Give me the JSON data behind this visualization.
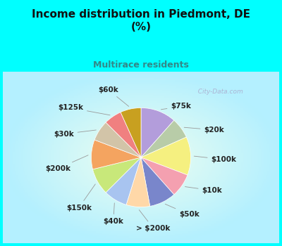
{
  "title": "Income distribution in Piedmont, DE\n(%)",
  "subtitle": "Multirace residents",
  "title_color": "#111111",
  "subtitle_color": "#338888",
  "background_cyan": "#00ffff",
  "labels": [
    "$75k",
    "$20k",
    "$100k",
    "$10k",
    "$50k",
    "> $200k",
    "$40k",
    "$150k",
    "$200k",
    "$30k",
    "$125k",
    "$60k"
  ],
  "values": [
    12,
    7,
    13,
    8,
    9,
    8,
    8,
    9,
    10,
    7,
    6,
    7
  ],
  "colors": [
    "#b39ddb",
    "#b8cca8",
    "#f5f080",
    "#f4a0b0",
    "#7986cb",
    "#ffd8a8",
    "#a8c4f0",
    "#c8e87a",
    "#f4a460",
    "#d2c4a8",
    "#f08080",
    "#c8a020"
  ],
  "wedge_edge_color": "#ffffff",
  "wedge_edge_width": 0.5,
  "watermark": "  City-Data.com",
  "label_fontsize": 7.5,
  "label_color": "#222222"
}
